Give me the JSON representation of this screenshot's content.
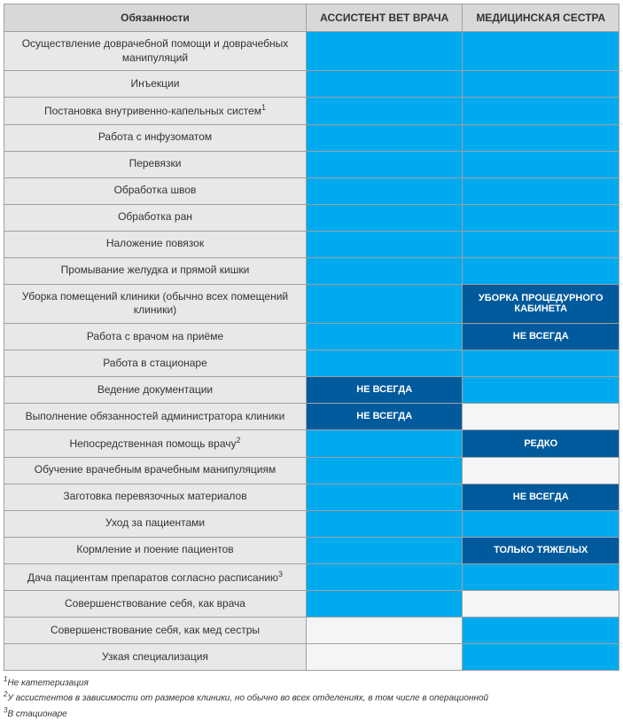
{
  "colors": {
    "header_bg": "#d8d8d8",
    "duty_bg": "#e8e8e8",
    "fill_light": "#00aaef",
    "fill_dark": "#005a9c",
    "fill_empty": "#f5f5f5",
    "border": "#a0a0a0",
    "text": "#333333",
    "cell_text": "#ffffff"
  },
  "fonts": {
    "header_size": 12,
    "body_size": 12,
    "cell_label_size": 11,
    "footnote_size": 10
  },
  "columns": {
    "duty": "Обязанности",
    "assistant": "АССИСТЕНТ ВЕТ ВРАЧА",
    "nurse": "МЕДИЦИНСКАЯ СЕСТРА"
  },
  "rows": [
    {
      "duty": "Осуществление доврачебной помощи и доврачебных манипуляций",
      "sup": "",
      "assistant": {
        "fill": "light",
        "text": ""
      },
      "nurse": {
        "fill": "light",
        "text": ""
      }
    },
    {
      "duty": "Инъекции",
      "sup": "",
      "assistant": {
        "fill": "light",
        "text": ""
      },
      "nurse": {
        "fill": "light",
        "text": ""
      }
    },
    {
      "duty": "Постановка внутривенно-капельных систем",
      "sup": "1",
      "assistant": {
        "fill": "light",
        "text": ""
      },
      "nurse": {
        "fill": "light",
        "text": ""
      }
    },
    {
      "duty": "Работа с инфузоматом",
      "sup": "",
      "assistant": {
        "fill": "light",
        "text": ""
      },
      "nurse": {
        "fill": "light",
        "text": ""
      }
    },
    {
      "duty": "Перевязки",
      "sup": "",
      "assistant": {
        "fill": "light",
        "text": ""
      },
      "nurse": {
        "fill": "light",
        "text": ""
      }
    },
    {
      "duty": "Обработка швов",
      "sup": "",
      "assistant": {
        "fill": "light",
        "text": ""
      },
      "nurse": {
        "fill": "light",
        "text": ""
      }
    },
    {
      "duty": "Обработка ран",
      "sup": "",
      "assistant": {
        "fill": "light",
        "text": ""
      },
      "nurse": {
        "fill": "light",
        "text": ""
      }
    },
    {
      "duty": "Наложение повязок",
      "sup": "",
      "assistant": {
        "fill": "light",
        "text": ""
      },
      "nurse": {
        "fill": "light",
        "text": ""
      }
    },
    {
      "duty": "Промывание желудка и прямой кишки",
      "sup": "",
      "assistant": {
        "fill": "light",
        "text": ""
      },
      "nurse": {
        "fill": "light",
        "text": ""
      }
    },
    {
      "duty": "Уборка помещений клиники (обычно всех помещений клиники)",
      "sup": "",
      "assistant": {
        "fill": "light",
        "text": ""
      },
      "nurse": {
        "fill": "dark",
        "text": "УБОРКА ПРОЦЕДУРНОГО КАБИНЕТА"
      }
    },
    {
      "duty": "Работа с врачом на приёме",
      "sup": "",
      "assistant": {
        "fill": "light",
        "text": ""
      },
      "nurse": {
        "fill": "dark",
        "text": "НЕ ВСЕГДА"
      }
    },
    {
      "duty": "Работа в стационаре",
      "sup": "",
      "assistant": {
        "fill": "light",
        "text": ""
      },
      "nurse": {
        "fill": "light",
        "text": ""
      }
    },
    {
      "duty": "Ведение документации",
      "sup": "",
      "assistant": {
        "fill": "dark",
        "text": "НЕ ВСЕГДА"
      },
      "nurse": {
        "fill": "light",
        "text": ""
      }
    },
    {
      "duty": "Выполнение обязанностей администратора клиники",
      "sup": "",
      "assistant": {
        "fill": "dark",
        "text": "НЕ ВСЕГДА"
      },
      "nurse": {
        "fill": "empty",
        "text": ""
      }
    },
    {
      "duty": "Непосредственная помощь врачу",
      "sup": "2",
      "assistant": {
        "fill": "light",
        "text": ""
      },
      "nurse": {
        "fill": "dark",
        "text": "РЕДКО"
      }
    },
    {
      "duty": "Обучение врачебным врачебным манипуляциям",
      "sup": "",
      "assistant": {
        "fill": "light",
        "text": ""
      },
      "nurse": {
        "fill": "empty",
        "text": ""
      }
    },
    {
      "duty": "Заготовка перевязочных материалов",
      "sup": "",
      "assistant": {
        "fill": "light",
        "text": ""
      },
      "nurse": {
        "fill": "dark",
        "text": "НЕ ВСЕГДА"
      }
    },
    {
      "duty": "Уход за пациентами",
      "sup": "",
      "assistant": {
        "fill": "light",
        "text": ""
      },
      "nurse": {
        "fill": "light",
        "text": ""
      }
    },
    {
      "duty": "Кормление и поение пациентов",
      "sup": "",
      "assistant": {
        "fill": "light",
        "text": ""
      },
      "nurse": {
        "fill": "dark",
        "text": "ТОЛЬКО ТЯЖЕЛЫХ"
      }
    },
    {
      "duty": "Дача пациентам препаратов согласно расписанию",
      "sup": "3",
      "assistant": {
        "fill": "light",
        "text": ""
      },
      "nurse": {
        "fill": "light",
        "text": ""
      }
    },
    {
      "duty": "Совершенствование себя, как врача",
      "sup": "",
      "assistant": {
        "fill": "light",
        "text": ""
      },
      "nurse": {
        "fill": "empty",
        "text": ""
      }
    },
    {
      "duty": "Совершенствование себя, как мед сестры",
      "sup": "",
      "assistant": {
        "fill": "empty",
        "text": ""
      },
      "nurse": {
        "fill": "light",
        "text": ""
      }
    },
    {
      "duty": "Узкая специализация",
      "sup": "",
      "assistant": {
        "fill": "empty",
        "text": ""
      },
      "nurse": {
        "fill": "light",
        "text": ""
      }
    }
  ],
  "footnotes": [
    {
      "num": "1",
      "text": "Не катетеризация"
    },
    {
      "num": "2",
      "text": "У ассистентов в зависимости от размеров клиники, но обычно во всех отделениях, в том числе в операционной"
    },
    {
      "num": "3",
      "text": "В стационаре"
    }
  ]
}
